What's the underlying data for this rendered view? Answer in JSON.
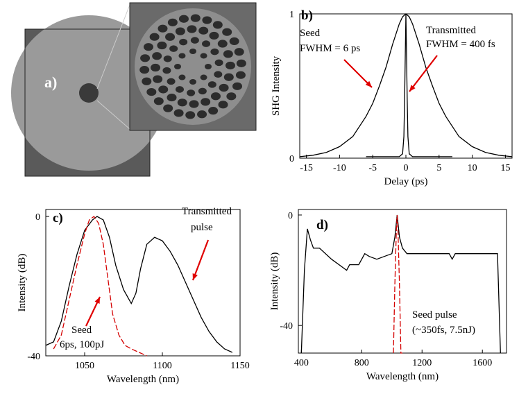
{
  "figure": {
    "panel_a": {
      "label": "a)",
      "image_description_icon": "fiber-micrograph"
    }
  },
  "chart_data": [
    {
      "panel": "b)",
      "type": "line",
      "xlabel": "Delay (ps)",
      "ylabel": "SHG Intensity",
      "xlim": [
        -16,
        16
      ],
      "ylim": [
        0,
        1
      ],
      "xticks": [
        "-15",
        "-10",
        "-5",
        "0",
        "5",
        "10",
        "15"
      ],
      "yticks": [
        "0",
        "1"
      ],
      "annotations": [
        {
          "text": "Seed",
          "color": "#000000"
        },
        {
          "text": "FWHM = 6 ps",
          "color": "#000000"
        },
        {
          "text": "Transmitted",
          "color": "#000000"
        },
        {
          "text": "FWHM =  400 fs",
          "color": "#000000"
        }
      ],
      "series": [
        {
          "color": "#000000",
          "x": [
            -16,
            -14,
            -12,
            -10,
            -8,
            -6,
            -5,
            -4,
            -3,
            -2,
            -1,
            -0.5,
            0,
            0.5,
            1,
            2,
            3,
            4,
            5,
            6,
            8,
            10,
            12,
            14,
            16
          ],
          "y": [
            0.01,
            0.02,
            0.04,
            0.08,
            0.15,
            0.29,
            0.38,
            0.5,
            0.63,
            0.79,
            0.93,
            0.98,
            1.0,
            0.98,
            0.93,
            0.79,
            0.63,
            0.5,
            0.38,
            0.29,
            0.15,
            0.08,
            0.04,
            0.02,
            0.01
          ]
        },
        {
          "color": "#000000",
          "x": [
            -6,
            -1,
            -0.5,
            -0.3,
            -0.2,
            0,
            0.2,
            0.3,
            0.5,
            1,
            7
          ],
          "y": [
            0.01,
            0.01,
            0.03,
            0.15,
            0.4,
            1.0,
            0.4,
            0.15,
            0.03,
            0.01,
            0.01
          ]
        }
      ]
    },
    {
      "panel": "c)",
      "type": "line",
      "xlabel": "Wavelength (nm)",
      "ylabel": "Intensity (dB)",
      "xlim": [
        1025,
        1150
      ],
      "ylim": [
        -40,
        2
      ],
      "xticks": [
        "1050",
        "1100",
        "1150"
      ],
      "yticks": [
        "-40",
        "0"
      ],
      "annotations": [
        {
          "text": "Transmitted",
          "color": "#000000"
        },
        {
          "text": "pulse",
          "color": "#000000"
        },
        {
          "text": "Seed",
          "color": "#000000"
        },
        {
          "text": "6ps, 100pJ",
          "color": "#000000"
        }
      ],
      "series": [
        {
          "color": "#000000",
          "x": [
            1025,
            1030,
            1035,
            1040,
            1045,
            1050,
            1055,
            1058,
            1062,
            1066,
            1070,
            1075,
            1080,
            1083,
            1086,
            1090,
            1095,
            1100,
            1105,
            1110,
            1115,
            1120,
            1125,
            1130,
            1135,
            1140,
            1145
          ],
          "y": [
            -37,
            -36,
            -30,
            -20,
            -11,
            -4,
            -1,
            0,
            -1,
            -6,
            -14,
            -21,
            -25,
            -22,
            -15,
            -8,
            -6,
            -7,
            -10,
            -14,
            -19,
            -24,
            -29,
            -33,
            -36,
            -38,
            -39
          ]
        },
        {
          "color": "#d40000",
          "x": [
            1030,
            1035,
            1040,
            1045,
            1050,
            1053,
            1056,
            1059,
            1062,
            1065,
            1068,
            1072,
            1076,
            1080,
            1085,
            1090
          ],
          "y": [
            -38,
            -34,
            -24,
            -14,
            -5,
            -1,
            0,
            -2,
            -8,
            -18,
            -28,
            -34,
            -37,
            -38,
            -39,
            -40
          ]
        }
      ]
    },
    {
      "panel": "d)",
      "type": "line",
      "xlabel": "Wavelength (nm)",
      "ylabel": "Intensity (dB)",
      "xlim": [
        380,
        1760
      ],
      "ylim": [
        -50,
        2
      ],
      "xticks": [
        "400",
        "800",
        "1200",
        "1600"
      ],
      "yticks": [
        "-40",
        "0"
      ],
      "annotations": [
        {
          "text": "Seed pulse",
          "color": "#000000"
        },
        {
          "text": "(~350fs, 7.5nJ)",
          "color": "#000000"
        }
      ],
      "series": [
        {
          "color": "#000000",
          "x": [
            400,
            420,
            440,
            460,
            480,
            520,
            600,
            700,
            720,
            780,
            820,
            850,
            900,
            950,
            1000,
            1020,
            1035,
            1050,
            1070,
            1100,
            1200,
            1300,
            1380,
            1400,
            1420,
            1500,
            1600,
            1700,
            1720
          ],
          "y": [
            -50,
            -20,
            -5,
            -9,
            -12,
            -12,
            -16,
            -20,
            -18,
            -18,
            -14,
            -15,
            -16,
            -15,
            -14,
            -8,
            0,
            -8,
            -12,
            -14,
            -14,
            -14,
            -14,
            -16,
            -14,
            -14,
            -14,
            -14,
            -50
          ]
        },
        {
          "color": "#d40000",
          "x": [
            1010,
            1020,
            1030,
            1035,
            1040,
            1050,
            1060,
            1070
          ],
          "y": [
            -50,
            -25,
            -5,
            0,
            -5,
            -25,
            -50,
            -50
          ]
        }
      ]
    }
  ]
}
